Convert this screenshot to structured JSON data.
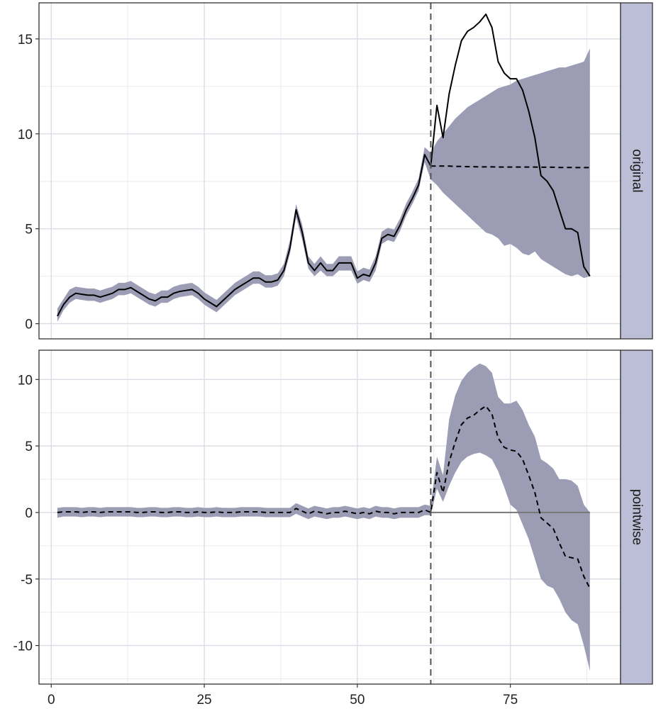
{
  "chart_data": {
    "type": "line",
    "colors": {
      "ribbon": "#9c9db5",
      "strip": "#bcbdd6",
      "grid_major": "#dcdce4",
      "grid_minor": "#ebebef",
      "line": "#000000",
      "vline": "#555555",
      "zero_line": "#777777"
    },
    "xlim": [
      -2,
      93
    ],
    "x_ticks": [
      0,
      25,
      50,
      75
    ],
    "x_tick_labels": [
      "0",
      "25",
      "50",
      "75"
    ],
    "intervention_x": 62,
    "panels": [
      {
        "strip_label": "original",
        "ylim": [
          -0.8,
          16.9
        ],
        "y_ticks": [
          0,
          5,
          10,
          15
        ],
        "y_tick_labels": [
          "0",
          "5",
          "10",
          "15"
        ],
        "series": [
          {
            "role": "observed",
            "style": "solid",
            "x": [
              1,
              2,
              3,
              4,
              5,
              6,
              7,
              8,
              9,
              10,
              11,
              12,
              13,
              14,
              15,
              16,
              17,
              18,
              19,
              20,
              21,
              22,
              23,
              24,
              25,
              26,
              27,
              28,
              29,
              30,
              31,
              32,
              33,
              34,
              35,
              36,
              37,
              38,
              39,
              40,
              41,
              42,
              43,
              44,
              45,
              46,
              47,
              48,
              49,
              50,
              51,
              52,
              53,
              54,
              55,
              56,
              57,
              58,
              59,
              60,
              61,
              62,
              63,
              64,
              65,
              66,
              67,
              68,
              69,
              70,
              71,
              72,
              73,
              74,
              75,
              76,
              77,
              78,
              79,
              80,
              81,
              82,
              83,
              84,
              85,
              86,
              87,
              88
            ],
            "y": [
              0.4,
              1.0,
              1.4,
              1.6,
              1.55,
              1.5,
              1.5,
              1.4,
              1.5,
              1.6,
              1.8,
              1.8,
              1.9,
              1.7,
              1.5,
              1.3,
              1.2,
              1.4,
              1.4,
              1.6,
              1.7,
              1.75,
              1.8,
              1.6,
              1.3,
              1.1,
              0.9,
              1.2,
              1.5,
              1.8,
              2.0,
              2.2,
              2.4,
              2.4,
              2.2,
              2.2,
              2.3,
              2.8,
              4.0,
              6.0,
              4.8,
              3.2,
              2.8,
              3.2,
              2.8,
              2.8,
              3.2,
              3.2,
              3.2,
              2.4,
              2.6,
              2.5,
              3.2,
              4.5,
              4.7,
              4.6,
              5.2,
              6.0,
              6.6,
              7.3,
              8.9,
              8.3,
              11.5,
              9.8,
              12.1,
              13.6,
              14.9,
              15.4,
              15.6,
              15.9,
              16.3,
              15.6,
              13.8,
              13.2,
              12.9,
              12.9,
              12.3,
              11.2,
              9.8,
              7.8,
              7.5,
              7.0,
              6.0,
              5.0,
              5.0,
              4.8,
              3.0,
              2.5
            ]
          },
          {
            "role": "predicted",
            "style": "dashed",
            "x": [
              62,
              63,
              64,
              65,
              66,
              67,
              68,
              69,
              70,
              71,
              72,
              73,
              74,
              75,
              76,
              77,
              78,
              79,
              80,
              81,
              82,
              83,
              84,
              85,
              86,
              87,
              88
            ],
            "y": [
              8.3,
              8.3,
              8.3,
              8.3,
              8.28,
              8.28,
              8.27,
              8.27,
              8.26,
              8.26,
              8.26,
              8.25,
              8.25,
              8.25,
              8.25,
              8.25,
              8.25,
              8.25,
              8.24,
              8.24,
              8.24,
              8.23,
              8.23,
              8.23,
              8.22,
              8.22,
              8.22
            ]
          }
        ],
        "band": {
          "x": [
            1,
            2,
            3,
            4,
            5,
            6,
            7,
            8,
            9,
            10,
            11,
            12,
            13,
            14,
            15,
            16,
            17,
            18,
            19,
            20,
            21,
            22,
            23,
            24,
            25,
            26,
            27,
            28,
            29,
            30,
            31,
            32,
            33,
            34,
            35,
            36,
            37,
            38,
            39,
            40,
            41,
            42,
            43,
            44,
            45,
            46,
            47,
            48,
            49,
            50,
            51,
            52,
            53,
            54,
            55,
            56,
            57,
            58,
            59,
            60,
            61,
            62,
            63,
            64,
            65,
            66,
            67,
            68,
            69,
            70,
            71,
            72,
            73,
            74,
            75,
            76,
            77,
            78,
            79,
            80,
            81,
            82,
            83,
            84,
            85,
            86,
            87,
            88
          ],
          "lower": [
            0.1,
            0.7,
            1.1,
            1.3,
            1.25,
            1.2,
            1.2,
            1.1,
            1.2,
            1.3,
            1.5,
            1.5,
            1.6,
            1.4,
            1.2,
            1.0,
            0.9,
            1.1,
            1.1,
            1.3,
            1.4,
            1.45,
            1.5,
            1.3,
            1.0,
            0.8,
            0.6,
            0.9,
            1.2,
            1.5,
            1.7,
            1.9,
            2.1,
            2.1,
            1.9,
            1.9,
            2.0,
            2.5,
            3.7,
            5.6,
            4.4,
            2.9,
            2.5,
            2.8,
            2.5,
            2.5,
            2.8,
            2.8,
            2.8,
            2.1,
            2.3,
            2.2,
            2.8,
            4.2,
            4.4,
            4.3,
            4.9,
            5.7,
            6.3,
            7.0,
            8.5,
            7.6,
            7.3,
            6.9,
            6.6,
            6.3,
            6.0,
            5.7,
            5.4,
            5.1,
            4.8,
            4.7,
            4.5,
            4.1,
            4.2,
            4.0,
            3.7,
            3.6,
            3.8,
            3.4,
            3.2,
            3.0,
            2.8,
            2.6,
            2.5,
            2.6,
            2.4,
            2.5
          ],
          "upper": [
            0.8,
            1.3,
            1.8,
            1.95,
            1.9,
            1.85,
            1.85,
            1.75,
            1.85,
            1.95,
            2.15,
            2.15,
            2.25,
            2.05,
            1.85,
            1.65,
            1.55,
            1.75,
            1.75,
            1.95,
            2.05,
            2.1,
            2.15,
            1.95,
            1.65,
            1.45,
            1.25,
            1.55,
            1.85,
            2.15,
            2.35,
            2.55,
            2.75,
            2.75,
            2.55,
            2.55,
            2.65,
            3.15,
            4.4,
            6.3,
            5.2,
            3.55,
            3.15,
            3.55,
            3.15,
            3.15,
            3.55,
            3.55,
            3.55,
            2.75,
            2.95,
            2.85,
            3.55,
            4.85,
            5.05,
            4.95,
            5.55,
            6.35,
            6.95,
            7.65,
            9.3,
            9.0,
            9.6,
            10.0,
            10.4,
            10.8,
            11.1,
            11.4,
            11.6,
            11.8,
            12.0,
            12.2,
            12.4,
            12.5,
            12.6,
            12.8,
            12.9,
            13.0,
            13.1,
            13.2,
            13.3,
            13.4,
            13.5,
            13.5,
            13.6,
            13.7,
            13.8,
            14.5
          ]
        }
      },
      {
        "strip_label": "pointwise",
        "ylim": [
          -12.9,
          12.2
        ],
        "y_ticks": [
          -10,
          -5,
          0,
          5,
          10
        ],
        "y_tick_labels": [
          "-10",
          "-5",
          "0",
          "5",
          "10"
        ],
        "zero_line": true,
        "series": [
          {
            "role": "pointwise",
            "style": "dashed",
            "x": [
              1,
              2,
              3,
              4,
              5,
              6,
              7,
              8,
              9,
              10,
              11,
              12,
              13,
              14,
              15,
              16,
              17,
              18,
              19,
              20,
              21,
              22,
              23,
              24,
              25,
              26,
              27,
              28,
              29,
              30,
              31,
              32,
              33,
              34,
              35,
              36,
              37,
              38,
              39,
              40,
              41,
              42,
              43,
              44,
              45,
              46,
              47,
              48,
              49,
              50,
              51,
              52,
              53,
              54,
              55,
              56,
              57,
              58,
              59,
              60,
              61,
              62,
              63,
              64,
              65,
              66,
              67,
              68,
              69,
              70,
              71,
              72,
              73,
              74,
              75,
              76,
              77,
              78,
              79,
              80,
              81,
              82,
              83,
              84,
              85,
              86,
              87,
              88
            ],
            "y": [
              0.0,
              0.05,
              0.05,
              0.05,
              0.0,
              0.05,
              0.05,
              0.0,
              0.05,
              0.05,
              0.05,
              0.05,
              0.05,
              0.0,
              0.0,
              0.05,
              0.05,
              0.0,
              0.0,
              0.05,
              0.05,
              0.0,
              0.0,
              0.05,
              0.0,
              0.0,
              0.05,
              0.0,
              0.0,
              0.0,
              0.05,
              0.05,
              0.05,
              0.05,
              0.0,
              0.0,
              0.0,
              0.0,
              0.0,
              0.3,
              0.1,
              -0.1,
              0.1,
              0.0,
              -0.1,
              0.0,
              0.0,
              0.1,
              0.0,
              -0.1,
              0.0,
              -0.1,
              0.1,
              0.0,
              0.0,
              -0.1,
              0.0,
              0.0,
              0.0,
              0.0,
              0.2,
              0.0,
              3.0,
              1.5,
              3.8,
              5.3,
              6.6,
              7.1,
              7.3,
              7.7,
              8.0,
              7.4,
              5.6,
              4.9,
              4.7,
              4.6,
              4.0,
              2.8,
              1.5,
              -0.4,
              -0.8,
              -1.2,
              -2.3,
              -3.3,
              -3.4,
              -3.5,
              -4.8,
              -5.7
            ]
          }
        ],
        "band": {
          "x": [
            1,
            2,
            3,
            4,
            5,
            6,
            7,
            8,
            9,
            10,
            11,
            12,
            13,
            14,
            15,
            16,
            17,
            18,
            19,
            20,
            21,
            22,
            23,
            24,
            25,
            26,
            27,
            28,
            29,
            30,
            31,
            32,
            33,
            34,
            35,
            36,
            37,
            38,
            39,
            40,
            41,
            42,
            43,
            44,
            45,
            46,
            47,
            48,
            49,
            50,
            51,
            52,
            53,
            54,
            55,
            56,
            57,
            58,
            59,
            60,
            61,
            62,
            63,
            64,
            65,
            66,
            67,
            68,
            69,
            70,
            71,
            72,
            73,
            74,
            75,
            76,
            77,
            78,
            79,
            80,
            81,
            82,
            83,
            84,
            85,
            86,
            87,
            88
          ],
          "lower": [
            -0.4,
            -0.3,
            -0.3,
            -0.3,
            -0.35,
            -0.3,
            -0.3,
            -0.35,
            -0.3,
            -0.3,
            -0.3,
            -0.3,
            -0.3,
            -0.35,
            -0.35,
            -0.3,
            -0.3,
            -0.35,
            -0.35,
            -0.3,
            -0.3,
            -0.35,
            -0.35,
            -0.3,
            -0.35,
            -0.35,
            -0.3,
            -0.35,
            -0.35,
            -0.35,
            -0.3,
            -0.3,
            -0.3,
            -0.3,
            -0.35,
            -0.35,
            -0.35,
            -0.35,
            -0.35,
            -0.1,
            -0.3,
            -0.5,
            -0.3,
            -0.4,
            -0.5,
            -0.4,
            -0.4,
            -0.3,
            -0.4,
            -0.5,
            -0.4,
            -0.5,
            -0.3,
            -0.4,
            -0.4,
            -0.5,
            -0.4,
            -0.4,
            -0.4,
            -0.4,
            -0.2,
            -0.2,
            1.8,
            0.8,
            2.0,
            3.0,
            3.8,
            4.2,
            4.4,
            4.5,
            4.3,
            4.0,
            3.1,
            1.9,
            0.6,
            0.2,
            -0.9,
            -2.0,
            -3.5,
            -5.0,
            -5.5,
            -5.7,
            -6.5,
            -7.5,
            -8.1,
            -8.4,
            -10.0,
            -11.9
          ],
          "upper": [
            0.35,
            0.4,
            0.4,
            0.4,
            0.35,
            0.4,
            0.4,
            0.35,
            0.4,
            0.4,
            0.4,
            0.4,
            0.4,
            0.35,
            0.35,
            0.4,
            0.4,
            0.35,
            0.35,
            0.4,
            0.4,
            0.35,
            0.35,
            0.4,
            0.35,
            0.35,
            0.4,
            0.35,
            0.35,
            0.35,
            0.4,
            0.4,
            0.4,
            0.4,
            0.35,
            0.35,
            0.35,
            0.35,
            0.35,
            0.7,
            0.5,
            0.3,
            0.5,
            0.4,
            0.3,
            0.4,
            0.4,
            0.5,
            0.4,
            0.3,
            0.4,
            0.3,
            0.5,
            0.4,
            0.4,
            0.3,
            0.4,
            0.4,
            0.4,
            0.4,
            0.6,
            0.5,
            4.2,
            2.8,
            7.0,
            8.8,
            9.9,
            10.5,
            10.9,
            11.2,
            11.0,
            10.5,
            8.7,
            8.2,
            8.2,
            8.4,
            7.7,
            6.6,
            5.7,
            4.0,
            3.7,
            3.3,
            2.5,
            2.5,
            2.4,
            2.0,
            0.6,
            0.0
          ]
        }
      }
    ]
  }
}
